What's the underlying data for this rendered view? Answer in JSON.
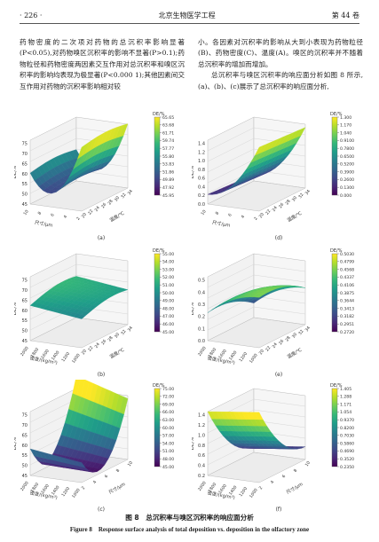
{
  "header": {
    "page_number": "· 226 ·",
    "journal": "北京生物医学工程",
    "volume": "第 44 卷"
  },
  "left_text": [
    "药物密度的二次项对药物的总沉积率影响显著(P<0.05),对药物嗅区沉积率的影响不显著(P>0.1);药物粒径和药物密度两因素交互作用对总沉积率和嗅区沉积率的影响均表现为极显著(P<0.000 1);其他因素间交互作用对药物的沉积率影响相对较"
  ],
  "right_text": [
    "小。各因素对沉积率的影响从大到小表现为药物粒径(B)、药物密度(C)、温度(A)。嗅区的沉积率并不随着总沉积率的增加而增加。",
    "总沉积率与嗅区沉积率的响应面分析如图 8 所示,(a)、(b)、(c)展示了总沉积率的响应面分析,"
  ],
  "panels": [
    {
      "id": "a",
      "label": "(a)",
      "z_label": "DE/%",
      "x_label": "温度/℃",
      "y_label": "尺寸/μm",
      "colorbar_title": "DE/%",
      "colorbar_ticks": [
        "65.65",
        "63.68",
        "61.71",
        "59.74",
        "57.77",
        "55.80",
        "53.83",
        "51.86",
        "49.89",
        "47.92",
        "45.95"
      ],
      "z_ticks": [
        "75",
        "70",
        "65",
        "60",
        "55",
        "50",
        "45"
      ],
      "x_ticks": [
        "20",
        "22",
        "24",
        "26",
        "28",
        "30",
        "32",
        "34"
      ],
      "y_ticks": [
        "2",
        "4",
        "6",
        "8",
        "10"
      ]
    },
    {
      "id": "d",
      "label": "(d)",
      "z_label": "DE/%",
      "x_label": "温度/℃",
      "y_label": "尺寸/μm",
      "colorbar_title": "DE/%",
      "colorbar_ticks": [
        "1.300",
        "1.170",
        "1.040",
        "0.9100",
        "0.7800",
        "0.6500",
        "0.5200",
        "0.3900",
        "0.2600",
        "0.1300",
        "0.000"
      ],
      "z_ticks": [
        "1.4",
        "1.2",
        "1.0",
        "0.8",
        "0.6",
        "0.4",
        "0.2",
        "0.0"
      ],
      "x_ticks": [
        "20",
        "22",
        "24",
        "26",
        "28",
        "30",
        "32",
        "34"
      ],
      "y_ticks": [
        "2",
        "4",
        "6",
        "8",
        "10"
      ]
    },
    {
      "id": "b",
      "label": "(b)",
      "z_label": "DE/%",
      "x_label": "温度/℃",
      "y_label": "密度/(kg/m³)",
      "colorbar_title": "DE/%",
      "colorbar_ticks": [
        "55.00",
        "54.00",
        "53.00",
        "52.00",
        "51.00",
        "50.00",
        "49.00",
        "48.00",
        "47.00",
        "46.00",
        "45.00"
      ],
      "z_ticks": [
        "75",
        "70",
        "65",
        "60",
        "55",
        "50",
        "45"
      ],
      "x_ticks": [
        "20",
        "22",
        "24",
        "26",
        "28",
        "30",
        "32",
        "34"
      ],
      "y_ticks": [
        "1000",
        "1200",
        "1400",
        "1600",
        "1800",
        "2000"
      ]
    },
    {
      "id": "e",
      "label": "(e)",
      "z_label": "DE/%",
      "x_label": "温度/℃",
      "y_label": "密度/(kg/m³)",
      "colorbar_title": "DE/%",
      "colorbar_ticks": [
        "0.5030",
        "0.4799",
        "0.4568",
        "0.4337",
        "0.4106",
        "0.3875",
        "0.3644",
        "0.3413",
        "0.3182",
        "0.2951",
        "0.2720"
      ],
      "z_ticks": [
        "0.5",
        "0.4",
        "0.3",
        "0.2",
        "0.1",
        "0.0"
      ],
      "x_ticks": [
        "20",
        "22",
        "24",
        "26",
        "28",
        "30",
        "32",
        "34"
      ],
      "y_ticks": [
        "1000",
        "1200",
        "1400",
        "1600",
        "1800",
        "2000"
      ]
    },
    {
      "id": "c",
      "label": "(c)",
      "z_label": "DE/%",
      "x_label": "尺寸/μm",
      "y_label": "密度/(kg/m³)",
      "colorbar_title": "DE/%",
      "colorbar_ticks": [
        "75.00",
        "72.00",
        "69.00",
        "66.00",
        "63.00",
        "60.00",
        "57.00",
        "54.00",
        "51.00",
        "48.00",
        "45.00"
      ],
      "z_ticks": [
        "75",
        "70",
        "65",
        "60",
        "55",
        "50",
        "45"
      ],
      "x_ticks": [
        "2",
        "4",
        "6",
        "8",
        "10"
      ],
      "y_ticks": [
        "1000",
        "1200",
        "1400",
        "1600",
        "1800",
        "2000"
      ]
    },
    {
      "id": "f",
      "label": "(f)",
      "z_label": "DE/%",
      "x_label": "尺寸/μm",
      "y_label": "密度/(kg/m³)",
      "colorbar_title": "DE/%",
      "colorbar_ticks": [
        "1.405",
        "1.288",
        "1.171",
        "1.054",
        "0.9370",
        "0.8200",
        "0.7030",
        "0.5860",
        "0.4690",
        "0.3520",
        "0.2350"
      ],
      "z_ticks": [
        "1.4",
        "1.2",
        "1.0",
        "0.8",
        "0.6",
        "0.4",
        "0.2"
      ],
      "x_ticks": [
        "2",
        "4",
        "6",
        "8",
        "10"
      ],
      "y_ticks": [
        "1000",
        "1200",
        "1400",
        "1600",
        "1800",
        "2000"
      ]
    }
  ],
  "caption": {
    "zh": "图 8　总沉积率与嗅区沉积率的响应面分析",
    "en": "Figure 8　Response surface analysis of total deposition vs. deposition in the olfactory zone"
  }
}
